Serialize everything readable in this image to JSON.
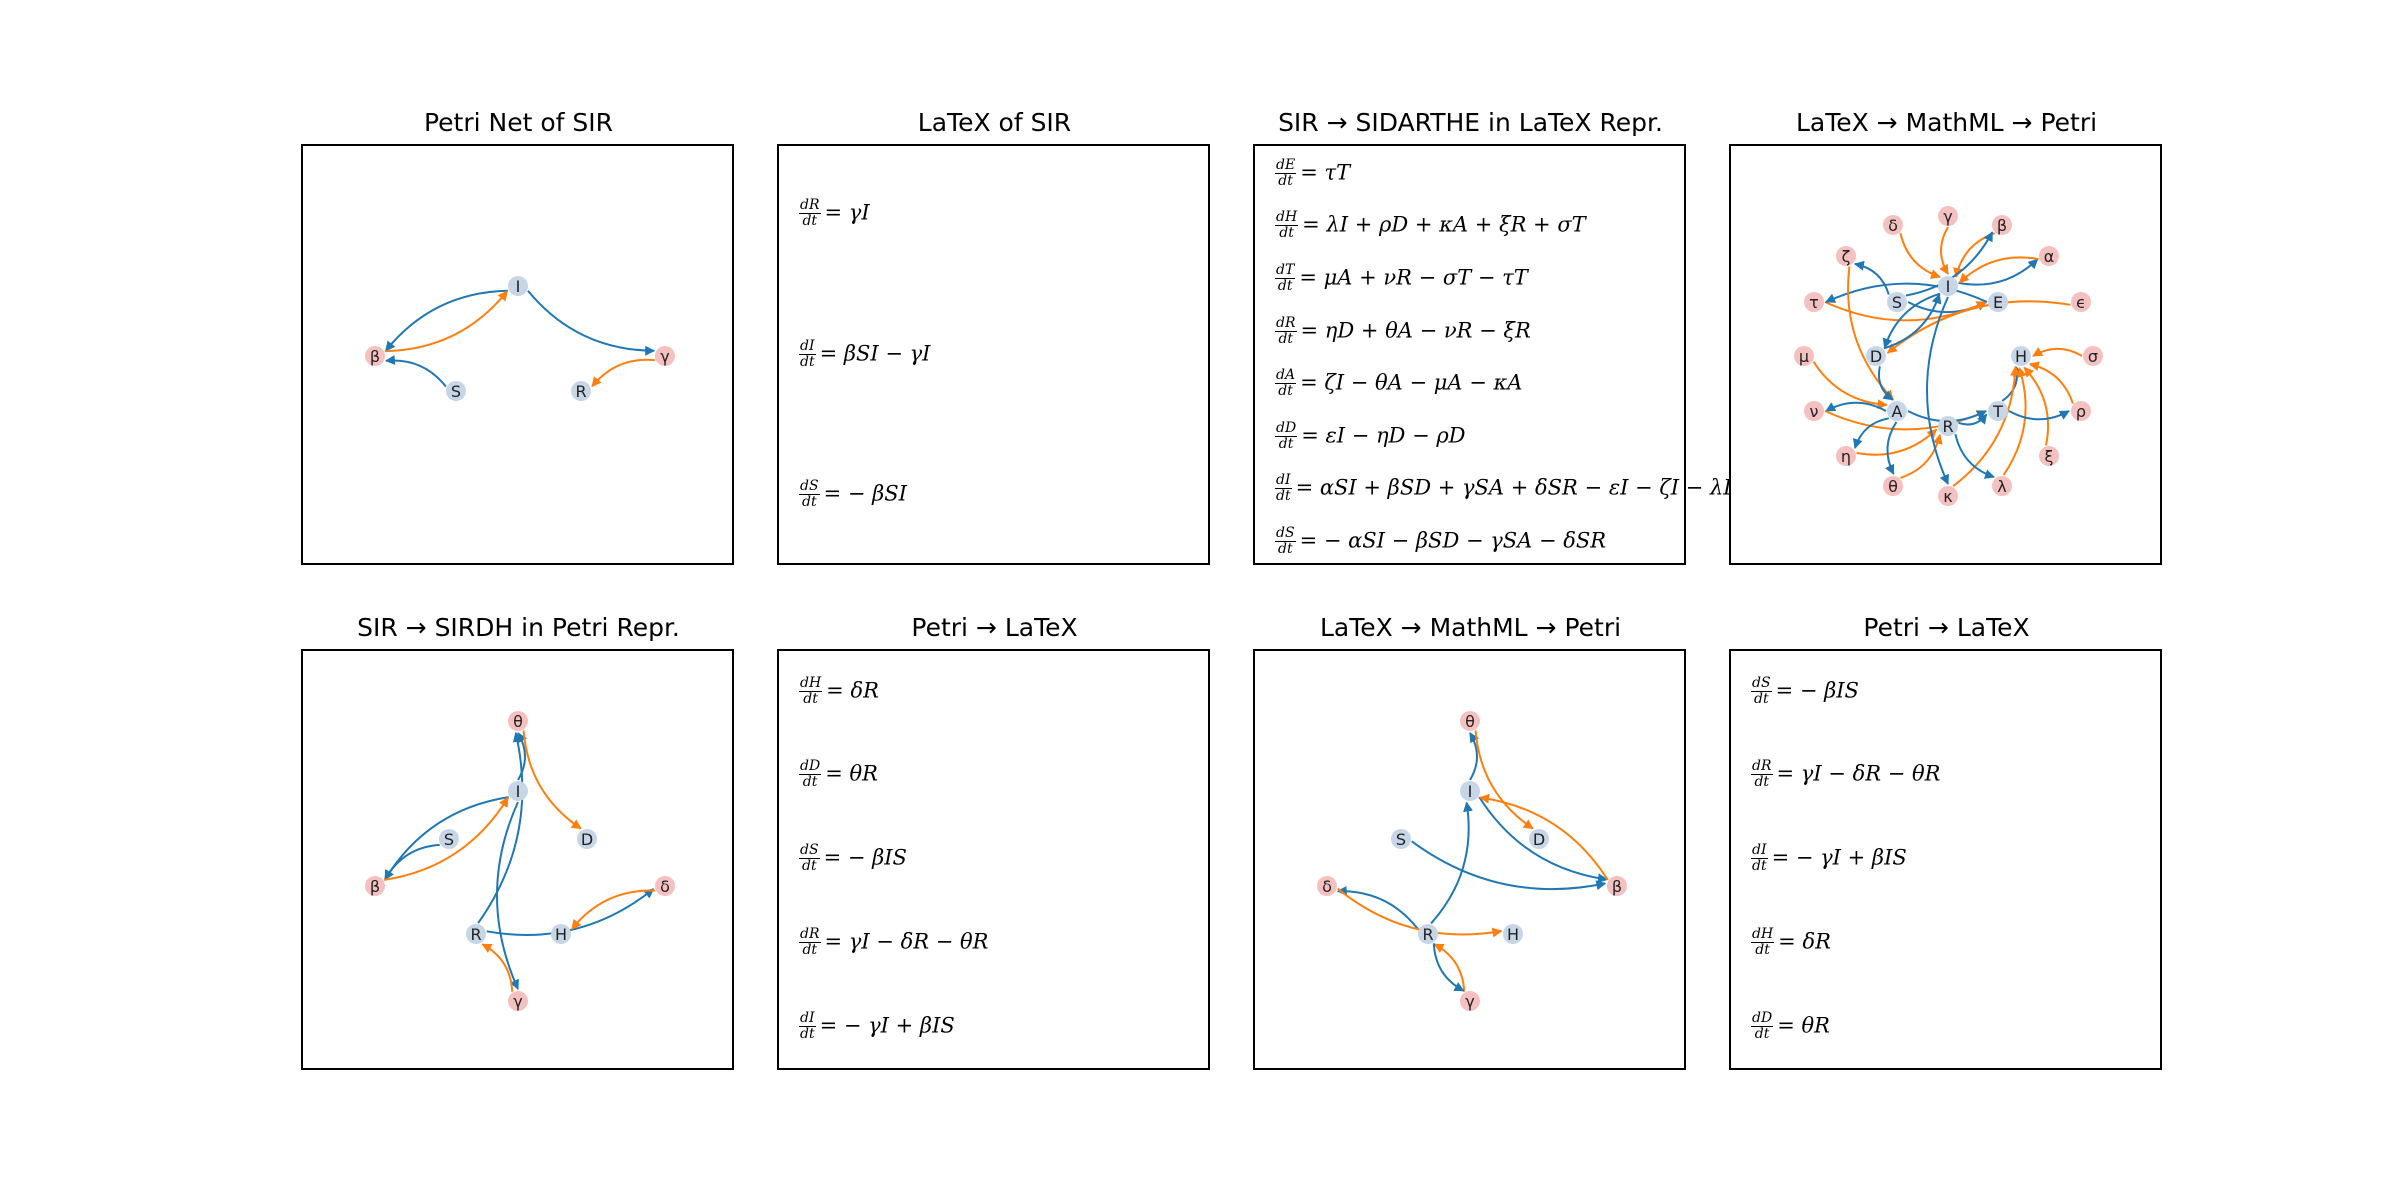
{
  "colors": {
    "state": "#c7d6e6",
    "param": "#f5c1c0",
    "blue_edge": "#1f77b4",
    "orange_edge": "#ff7f0e"
  },
  "panels": [
    {
      "title": "Petri Net of SIR",
      "type": "graph",
      "nodes": [
        {
          "id": "I",
          "label": "I",
          "kind": "state"
        },
        {
          "id": "beta",
          "label": "β",
          "kind": "param"
        },
        {
          "id": "gamma",
          "label": "γ",
          "kind": "param"
        },
        {
          "id": "S",
          "label": "S",
          "kind": "state"
        },
        {
          "id": "R",
          "label": "R",
          "kind": "state"
        }
      ],
      "edges": [
        {
          "from": "I",
          "to": "beta",
          "color": "blue"
        },
        {
          "from": "beta",
          "to": "I",
          "color": "orange"
        },
        {
          "from": "S",
          "to": "beta",
          "color": "blue"
        },
        {
          "from": "I",
          "to": "gamma",
          "color": "blue"
        },
        {
          "from": "gamma",
          "to": "R",
          "color": "orange"
        }
      ]
    },
    {
      "title": "LaTeX of SIR",
      "type": "equations",
      "equations": [
        {
          "num": "dR",
          "den": "dt",
          "rhs": "= γI"
        },
        {
          "num": "dI",
          "den": "dt",
          "rhs": "= βSI − γI"
        },
        {
          "num": "dS",
          "den": "dt",
          "rhs": "= − βSI"
        }
      ]
    },
    {
      "title": "SIR → SIDARTHE in LaTeX Repr.",
      "type": "equations",
      "equations": [
        {
          "num": "dE",
          "den": "dt",
          "rhs": "= τT"
        },
        {
          "num": "dH",
          "den": "dt",
          "rhs": "= λI + ρD + κA + ξR + σT"
        },
        {
          "num": "dT",
          "den": "dt",
          "rhs": "= μA + νR − σT − τT"
        },
        {
          "num": "dR",
          "den": "dt",
          "rhs": "= ηD + θA − νR − ξR"
        },
        {
          "num": "dA",
          "den": "dt",
          "rhs": "= ζI − θA − μA − κA"
        },
        {
          "num": "dD",
          "den": "dt",
          "rhs": "= εI − ηD − ρD"
        },
        {
          "num": "dI",
          "den": "dt",
          "rhs": "= αSI + βSD + γSA + δSR − εI − ζI − λI"
        },
        {
          "num": "dS",
          "den": "dt",
          "rhs": "= − αSI − βSD − γSA − δSR"
        }
      ]
    },
    {
      "title": "LaTeX → MathML → Petri",
      "type": "graph",
      "nodes": [
        {
          "id": "gamma",
          "label": "γ",
          "kind": "param"
        },
        {
          "id": "delta",
          "label": "δ",
          "kind": "param"
        },
        {
          "id": "beta",
          "label": "β",
          "kind": "param"
        },
        {
          "id": "zeta",
          "label": "ζ",
          "kind": "param"
        },
        {
          "id": "alpha",
          "label": "α",
          "kind": "param"
        },
        {
          "id": "I",
          "label": "I",
          "kind": "state"
        },
        {
          "id": "S",
          "label": "S",
          "kind": "state"
        },
        {
          "id": "E",
          "label": "E",
          "kind": "state"
        },
        {
          "id": "tau",
          "label": "τ",
          "kind": "param"
        },
        {
          "id": "eps",
          "label": "ϵ",
          "kind": "param"
        },
        {
          "id": "mu",
          "label": "μ",
          "kind": "param"
        },
        {
          "id": "D",
          "label": "D",
          "kind": "state"
        },
        {
          "id": "H",
          "label": "H",
          "kind": "state"
        },
        {
          "id": "sigma",
          "label": "σ",
          "kind": "param"
        },
        {
          "id": "nu",
          "label": "ν",
          "kind": "param"
        },
        {
          "id": "A",
          "label": "A",
          "kind": "state"
        },
        {
          "id": "T",
          "label": "T",
          "kind": "state"
        },
        {
          "id": "rho",
          "label": "ρ",
          "kind": "param"
        },
        {
          "id": "R",
          "label": "R",
          "kind": "state"
        },
        {
          "id": "eta",
          "label": "η",
          "kind": "param"
        },
        {
          "id": "xi",
          "label": "ξ",
          "kind": "param"
        },
        {
          "id": "theta",
          "label": "θ",
          "kind": "param"
        },
        {
          "id": "kappa",
          "label": "κ",
          "kind": "param"
        },
        {
          "id": "lambda",
          "label": "λ",
          "kind": "param"
        }
      ],
      "edges": [
        {
          "from": "S",
          "to": "zeta",
          "color": "blue"
        },
        {
          "from": "I",
          "to": "alpha",
          "color": "blue"
        },
        {
          "from": "alpha",
          "to": "I",
          "color": "orange"
        },
        {
          "from": "gamma",
          "to": "I",
          "color": "orange"
        },
        {
          "from": "delta",
          "to": "I",
          "color": "orange"
        },
        {
          "from": "beta",
          "to": "I",
          "color": "orange"
        },
        {
          "from": "S",
          "to": "beta",
          "color": "blue"
        },
        {
          "from": "S",
          "to": "E",
          "color": "blue"
        },
        {
          "from": "tau",
          "to": "E",
          "color": "orange"
        },
        {
          "from": "E",
          "to": "tau",
          "color": "blue"
        },
        {
          "from": "eps",
          "to": "D",
          "color": "orange"
        },
        {
          "from": "I",
          "to": "D",
          "color": "blue"
        },
        {
          "from": "zeta",
          "to": "A",
          "color": "orange"
        },
        {
          "from": "mu",
          "to": "A",
          "color": "orange"
        },
        {
          "from": "A",
          "to": "nu",
          "color": "blue"
        },
        {
          "from": "D",
          "to": "A",
          "color": "blue"
        },
        {
          "from": "nu",
          "to": "T",
          "color": "orange"
        },
        {
          "from": "A",
          "to": "T",
          "color": "blue"
        },
        {
          "from": "R",
          "to": "T",
          "color": "blue"
        },
        {
          "from": "T",
          "to": "H",
          "color": "blue"
        },
        {
          "from": "sigma",
          "to": "H",
          "color": "orange"
        },
        {
          "from": "rho",
          "to": "H",
          "color": "orange"
        },
        {
          "from": "xi",
          "to": "H",
          "color": "orange"
        },
        {
          "from": "lambda",
          "to": "H",
          "color": "orange"
        },
        {
          "from": "kappa",
          "to": "H",
          "color": "orange"
        },
        {
          "from": "T",
          "to": "rho",
          "color": "blue"
        },
        {
          "from": "eta",
          "to": "R",
          "color": "orange"
        },
        {
          "from": "theta",
          "to": "R",
          "color": "orange"
        },
        {
          "from": "A",
          "to": "theta",
          "color": "blue"
        },
        {
          "from": "A",
          "to": "eta",
          "color": "blue"
        },
        {
          "from": "I",
          "to": "kappa",
          "color": "blue"
        },
        {
          "from": "R",
          "to": "lambda",
          "color": "blue"
        },
        {
          "from": "D",
          "to": "I",
          "color": "blue"
        }
      ]
    },
    {
      "title": "SIR → SIRDH in Petri Repr.",
      "type": "graph",
      "nodes": [
        {
          "id": "theta",
          "label": "θ",
          "kind": "param"
        },
        {
          "id": "I",
          "label": "I",
          "kind": "state"
        },
        {
          "id": "S",
          "label": "S",
          "kind": "state"
        },
        {
          "id": "D",
          "label": "D",
          "kind": "state"
        },
        {
          "id": "beta",
          "label": "β",
          "kind": "param"
        },
        {
          "id": "delta",
          "label": "δ",
          "kind": "param"
        },
        {
          "id": "R",
          "label": "R",
          "kind": "state"
        },
        {
          "id": "H",
          "label": "H",
          "kind": "state"
        },
        {
          "id": "gamma",
          "label": "γ",
          "kind": "param"
        }
      ],
      "edges": [
        {
          "from": "I",
          "to": "beta",
          "color": "blue"
        },
        {
          "from": "S",
          "to": "beta",
          "color": "blue"
        },
        {
          "from": "beta",
          "to": "I",
          "color": "orange"
        },
        {
          "from": "I",
          "to": "theta",
          "color": "blue"
        },
        {
          "from": "theta",
          "to": "D",
          "color": "orange"
        },
        {
          "from": "R",
          "to": "theta",
          "color": "blue"
        },
        {
          "from": "I",
          "to": "gamma",
          "color": "blue"
        },
        {
          "from": "gamma",
          "to": "R",
          "color": "orange"
        },
        {
          "from": "R",
          "to": "delta",
          "color": "blue"
        },
        {
          "from": "delta",
          "to": "H",
          "color": "orange"
        }
      ]
    },
    {
      "title": "Petri → LaTeX",
      "type": "equations",
      "equations": [
        {
          "num": "dH",
          "den": "dt",
          "rhs": "= δR"
        },
        {
          "num": "dD",
          "den": "dt",
          "rhs": "= θR"
        },
        {
          "num": "dS",
          "den": "dt",
          "rhs": "= − βIS"
        },
        {
          "num": "dR",
          "den": "dt",
          "rhs": "= γI − δR − θR"
        },
        {
          "num": "dI",
          "den": "dt",
          "rhs": "= − γI + βIS"
        }
      ]
    },
    {
      "title": "LaTeX → MathML → Petri",
      "type": "graph",
      "nodes": [
        {
          "id": "theta",
          "label": "θ",
          "kind": "param"
        },
        {
          "id": "I",
          "label": "I",
          "kind": "state"
        },
        {
          "id": "S",
          "label": "S",
          "kind": "state"
        },
        {
          "id": "D",
          "label": "D",
          "kind": "state"
        },
        {
          "id": "delta",
          "label": "δ",
          "kind": "param"
        },
        {
          "id": "beta",
          "label": "β",
          "kind": "param"
        },
        {
          "id": "R",
          "label": "R",
          "kind": "state"
        },
        {
          "id": "H",
          "label": "H",
          "kind": "state"
        },
        {
          "id": "gamma",
          "label": "γ",
          "kind": "param"
        }
      ],
      "edges": [
        {
          "from": "I",
          "to": "theta",
          "color": "blue"
        },
        {
          "from": "theta",
          "to": "D",
          "color": "orange"
        },
        {
          "from": "I",
          "to": "beta",
          "color": "blue"
        },
        {
          "from": "S",
          "to": "beta",
          "color": "blue"
        },
        {
          "from": "beta",
          "to": "I",
          "color": "orange"
        },
        {
          "from": "R",
          "to": "delta",
          "color": "blue"
        },
        {
          "from": "delta",
          "to": "H",
          "color": "orange"
        },
        {
          "from": "R",
          "to": "I",
          "color": "blue"
        },
        {
          "from": "gamma",
          "to": "R",
          "color": "orange"
        },
        {
          "from": "R",
          "to": "gamma",
          "color": "blue"
        }
      ]
    },
    {
      "title": "Petri → LaTeX",
      "type": "equations",
      "equations": [
        {
          "num": "dS",
          "den": "dt",
          "rhs": "= − βIS"
        },
        {
          "num": "dR",
          "den": "dt",
          "rhs": "= γI − δR − θR"
        },
        {
          "num": "dI",
          "den": "dt",
          "rhs": "= − γI + βIS"
        },
        {
          "num": "dH",
          "den": "dt",
          "rhs": "= δR"
        },
        {
          "num": "dD",
          "den": "dt",
          "rhs": "= θR"
        }
      ]
    }
  ]
}
